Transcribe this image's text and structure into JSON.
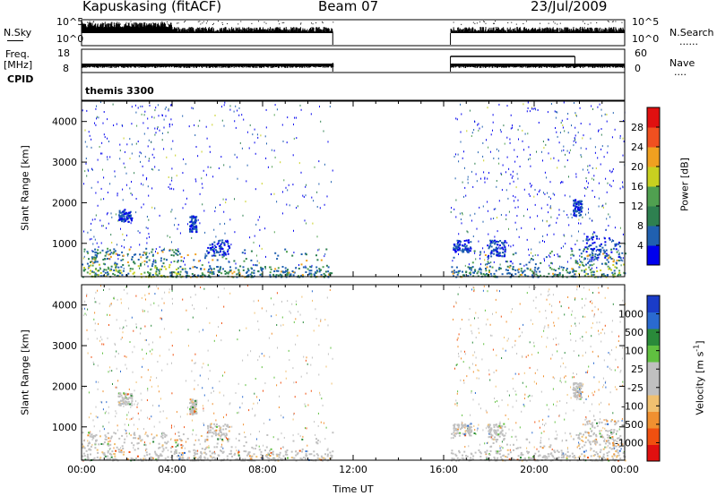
{
  "header": {
    "station": "Kapuskasing (fitACF)",
    "beam": "Beam 07",
    "date": "23/Jul/2009"
  },
  "top_panels": {
    "nsky_label": "N.Sky",
    "nsearch_label": "N.Search",
    "nsearch_dots": "......",
    "noise_ticks": [
      "10^5",
      "10^0"
    ],
    "freq_label": "Freq.",
    "freq_unit": "[MHz]",
    "freq_ticks": [
      "18",
      "8"
    ],
    "nave_label": "Nave",
    "nave_dots": "....",
    "nave_ticks": [
      "60",
      "0"
    ],
    "cpid_label": "CPID",
    "cpid_value": "themis 3300"
  },
  "colors": {
    "power_scale": [
      "#0000ee",
      "#2060b0",
      "#2e8050",
      "#50a050",
      "#c8d020",
      "#f0a020",
      "#f05020",
      "#e01010"
    ],
    "velocity_scale": [
      "#1a3cc8",
      "#2a6ad0",
      "#2a8a3a",
      "#60c040",
      "#c0c0c0",
      "#c0c0c0",
      "#f0c070",
      "#f09030",
      "#f05010",
      "#e01010"
    ]
  },
  "chart_data": [
    {
      "type": "heatmap",
      "name": "power",
      "ylabel": "Slant Range [km]",
      "yticks": [
        "1000",
        "2000",
        "3000",
        "4000"
      ],
      "ylim": [
        180,
        4500
      ],
      "colorbar_label": "Power [dB]",
      "colorbar_ticks": [
        "4",
        "8",
        "12",
        "16",
        "20",
        "24",
        "28"
      ],
      "colorbar_range": [
        0,
        30
      ],
      "data_gap_utc": [
        11.1,
        16.3
      ]
    },
    {
      "type": "heatmap",
      "name": "velocity",
      "ylabel": "Slant Range [km]",
      "yticks": [
        "1000",
        "2000",
        "3000",
        "4000"
      ],
      "ylim": [
        180,
        4500
      ],
      "colorbar_label": "Velocity [m s",
      "colorbar_label_sup": "-1",
      "colorbar_label_end": "]",
      "colorbar_ticks": [
        "1000",
        "500",
        "100",
        "25",
        "-25",
        "-100",
        "-500",
        "-1000"
      ],
      "xlabel": "Time UT",
      "xticks": [
        "00:00",
        "04:00",
        "08:00",
        "12:00",
        "16:00",
        "20:00",
        "00:00"
      ],
      "xlim": [
        0,
        24
      ],
      "data_gap_utc": [
        11.1,
        16.3
      ]
    }
  ]
}
